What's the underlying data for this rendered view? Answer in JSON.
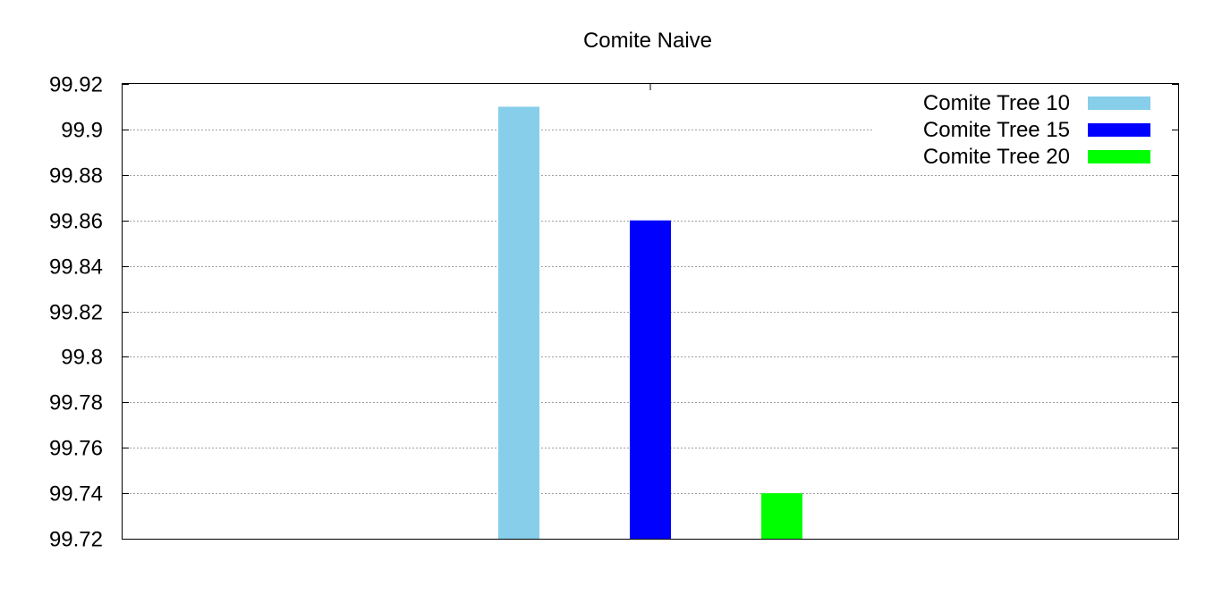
{
  "chart_data": {
    "type": "bar",
    "title": "Comite Naive",
    "xlabel": "",
    "ylabel": "",
    "ylim": [
      99.72,
      99.92
    ],
    "yticks": [
      "99.72",
      "99.74",
      "99.76",
      "99.78",
      "99.8",
      "99.82",
      "99.84",
      "99.86",
      "99.88",
      "99.9",
      "99.92"
    ],
    "grid": true,
    "legend_position": "top-right",
    "series": [
      {
        "name": "Comite Tree 10",
        "value": 99.91,
        "color": "#87ceeb"
      },
      {
        "name": "Comite Tree 15",
        "value": 99.86,
        "color": "#0000ff"
      },
      {
        "name": "Comite Tree 20",
        "value": 99.74,
        "color": "#00ff00"
      }
    ]
  }
}
